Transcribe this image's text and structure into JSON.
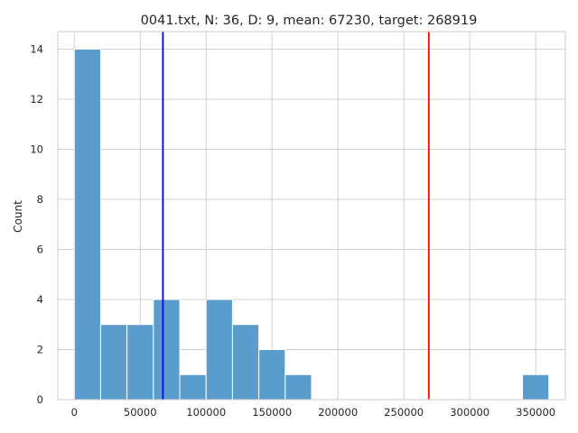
{
  "chart_data": {
    "type": "bar",
    "title": "0041.txt, N: 36, D: 9, mean: 67230, target: 268919",
    "xlabel": "",
    "ylabel": "Count",
    "xlim": [
      -12500,
      372500
    ],
    "ylim": [
      0,
      14.7
    ],
    "xticks": [
      0,
      50000,
      100000,
      150000,
      200000,
      250000,
      300000,
      350000
    ],
    "yticks": [
      0,
      2,
      4,
      6,
      8,
      10,
      12,
      14
    ],
    "grid": true,
    "bar_color": "#5a9ccb",
    "bar_edge_color": "#ffffff",
    "bins": [
      {
        "x0": 0,
        "x1": 20000,
        "count": 14
      },
      {
        "x0": 20000,
        "x1": 40000,
        "count": 3
      },
      {
        "x0": 40000,
        "x1": 60000,
        "count": 3
      },
      {
        "x0": 60000,
        "x1": 80000,
        "count": 4
      },
      {
        "x0": 80000,
        "x1": 100000,
        "count": 1
      },
      {
        "x0": 100000,
        "x1": 120000,
        "count": 4
      },
      {
        "x0": 120000,
        "x1": 140000,
        "count": 3
      },
      {
        "x0": 140000,
        "x1": 160000,
        "count": 2
      },
      {
        "x0": 160000,
        "x1": 180000,
        "count": 1
      },
      {
        "x0": 340000,
        "x1": 360000,
        "count": 1
      }
    ],
    "vlines": [
      {
        "name": "mean",
        "x": 67230,
        "color": "#0000ff"
      },
      {
        "name": "target",
        "x": 268919,
        "color": "#ff0000"
      }
    ]
  }
}
